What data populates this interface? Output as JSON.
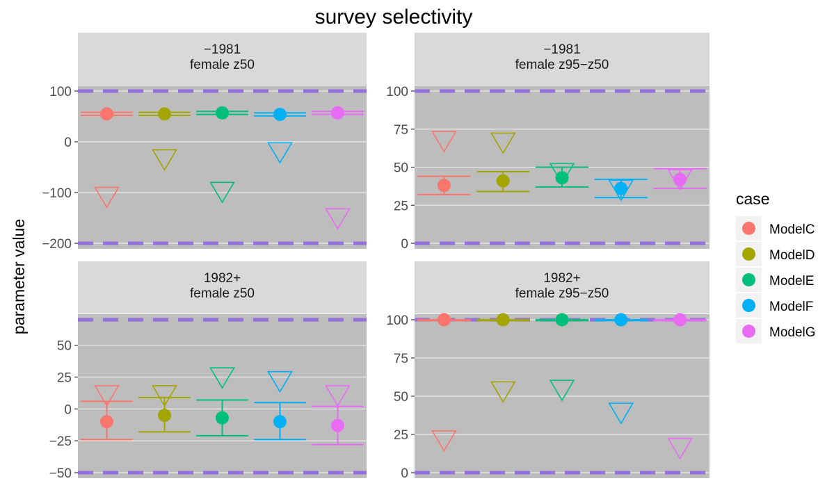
{
  "chart_data": {
    "type": "scatter",
    "title": "survey selectivity",
    "ylabel": "parameter value",
    "xlabel": "",
    "legend": {
      "title": "case",
      "position": "right"
    },
    "series": [
      {
        "name": "ModelC",
        "color": "#F8766D"
      },
      {
        "name": "ModelD",
        "color": "#A3A500"
      },
      {
        "name": "ModelE",
        "color": "#00BF7D"
      },
      {
        "name": "ModelF",
        "color": "#00B0F6"
      },
      {
        "name": "ModelG",
        "color": "#E76BF3"
      }
    ],
    "reference_line_color": "#9370DB",
    "panels": [
      {
        "strip": [
          "−1981",
          "female z50"
        ],
        "ylim": [
          -200,
          100
        ],
        "yticks": [
          100,
          0,
          -100,
          -200
        ],
        "ytick_labels": [
          "100",
          "0",
          "−100",
          "−200"
        ],
        "bounds": [
          -200,
          100
        ],
        "estimate": [
          55,
          55,
          57,
          54,
          57
        ],
        "lower": [
          52,
          52,
          54,
          51,
          54
        ],
        "upper": [
          58,
          58,
          60,
          57,
          60
        ],
        "initial": [
          -103,
          -29,
          -93,
          -15,
          -145
        ]
      },
      {
        "strip": [
          "−1981",
          "female z95−z50"
        ],
        "ylim": [
          0,
          100
        ],
        "yticks": [
          100,
          75,
          50,
          25,
          0
        ],
        "ytick_labels": [
          "100",
          "75",
          "50",
          "25",
          "0"
        ],
        "bounds": [
          0,
          100
        ],
        "estimate": [
          38,
          41,
          43,
          36,
          42
        ],
        "lower": [
          32,
          34,
          37,
          30,
          36
        ],
        "upper": [
          44,
          47,
          50,
          42,
          49
        ],
        "initial": [
          69,
          68,
          48,
          37,
          44
        ]
      },
      {
        "strip": [
          "1982+",
          "female z50"
        ],
        "ylim": [
          -50,
          70
        ],
        "yticks": [
          50,
          25,
          0,
          -25,
          -50
        ],
        "ytick_labels": [
          "50",
          "25",
          "0",
          "−25",
          "−50"
        ],
        "bounds": [
          -50,
          70
        ],
        "estimate": [
          -10,
          -5,
          -7,
          -10,
          -13
        ],
        "lower": [
          -24,
          -18,
          -21,
          -24,
          -28
        ],
        "upper": [
          6,
          9,
          7,
          5,
          2
        ],
        "initial": [
          13,
          13,
          27,
          24,
          13
        ]
      },
      {
        "strip": [
          "1982+",
          "female z95−z50"
        ],
        "ylim": [
          0,
          100
        ],
        "yticks": [
          100,
          75,
          50,
          25,
          0
        ],
        "ytick_labels": [
          "100",
          "75",
          "50",
          "25",
          "0"
        ],
        "bounds": [
          0,
          100
        ],
        "estimate": [
          100,
          100,
          100,
          100,
          100
        ],
        "lower": [
          99.4,
          99.4,
          99.4,
          99.4,
          99.4
        ],
        "upper": [
          100,
          100,
          100,
          100,
          100
        ],
        "initial": [
          23,
          55,
          56,
          41,
          18
        ]
      }
    ]
  }
}
